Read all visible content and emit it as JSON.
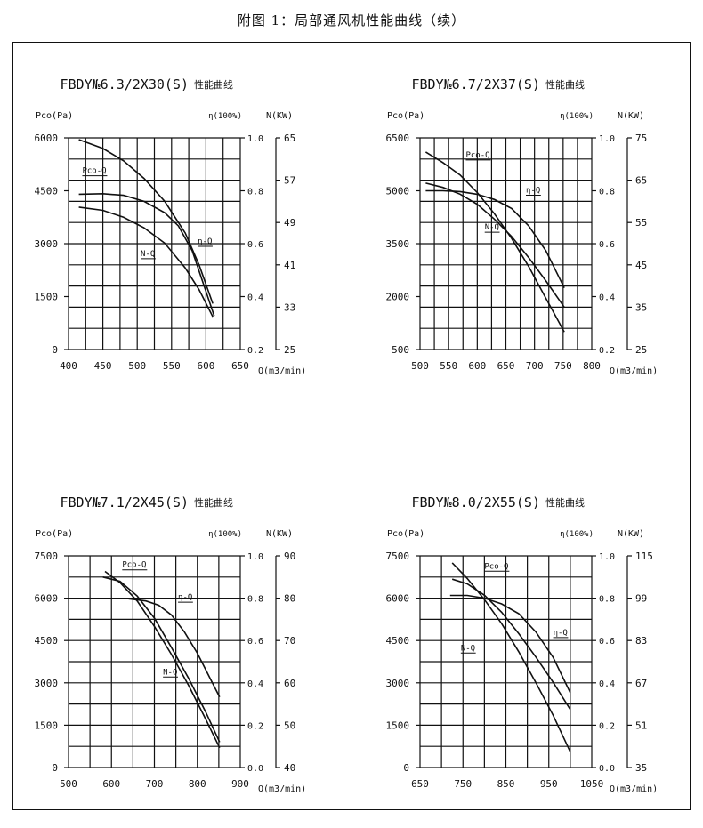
{
  "caption": "附图 1：局部通风机性能曲线（续）",
  "chart_data": [
    {
      "type": "line",
      "title": "FBDY№6.3/2X30(S)",
      "title_suffix": "性能曲线",
      "axis_labels": {
        "left": "Pco(Pa)",
        "eff": "η(100%)",
        "power": "N(KW)",
        "x": "Q(m3/min)"
      },
      "xlim": [
        400,
        650
      ],
      "x_ticks": [
        "400",
        "450",
        "500",
        "550",
        "600",
        "650"
      ],
      "y_pressure_ticks": [
        "0",
        "1500",
        "3000",
        "4500",
        "6000"
      ],
      "y_pressure_lim": [
        0,
        6000
      ],
      "y_eff_ticks": [
        "0.2",
        "0.4",
        "0.6",
        "0.8",
        "1.0"
      ],
      "y_eff_lim": [
        0.2,
        1.0
      ],
      "y_power_ticks": [
        "25",
        "33",
        "41",
        "49",
        "57",
        "65"
      ],
      "y_power_lim": [
        25,
        65
      ],
      "series": [
        {
          "name": "Pco-Q",
          "axis": "pressure",
          "x": [
            415,
            450,
            480,
            510,
            540,
            570,
            590,
            610
          ],
          "y": [
            5950,
            5700,
            5350,
            4850,
            4200,
            3300,
            2400,
            1300
          ]
        },
        {
          "name": "η-Q",
          "axis": "eff",
          "x": [
            415,
            450,
            480,
            510,
            540,
            560,
            580,
            600,
            612
          ],
          "y": [
            0.787,
            0.789,
            0.783,
            0.76,
            0.717,
            0.667,
            0.573,
            0.42,
            0.327
          ]
        },
        {
          "name": "N-Q",
          "axis": "power",
          "x": [
            415,
            450,
            480,
            510,
            540,
            570,
            590,
            610
          ],
          "y": [
            51.9,
            51.3,
            50.0,
            48.0,
            45.1,
            40.4,
            36.3,
            31.2
          ]
        }
      ],
      "curve_labels": [
        {
          "text": "Pco-Q",
          "x": 420,
          "y": 5000
        },
        {
          "text": "η-Q",
          "x": 588,
          "y": 3000
        },
        {
          "text": "N-Q",
          "x": 505,
          "y": 2650
        }
      ]
    },
    {
      "type": "line",
      "title": "FBDY№6.7/2X37(S)",
      "title_suffix": "性能曲线",
      "axis_labels": {
        "left": "Pco(Pa)",
        "eff": "η(100%)",
        "power": "N(KW)",
        "x": "Q(m3/min)"
      },
      "xlim": [
        500,
        800
      ],
      "x_ticks": [
        "500",
        "550",
        "600",
        "650",
        "700",
        "750",
        "800"
      ],
      "y_pressure_ticks": [
        "500",
        "2000",
        "3500",
        "5000",
        "6500"
      ],
      "y_pressure_lim": [
        500,
        6500
      ],
      "y_eff_ticks": [
        "0.2",
        "0.4",
        "0.6",
        "0.8",
        "1.0"
      ],
      "y_eff_lim": [
        0.2,
        1.0
      ],
      "y_power_ticks": [
        "25",
        "35",
        "45",
        "55",
        "65",
        "75"
      ],
      "y_power_lim": [
        25,
        75
      ],
      "series": [
        {
          "name": "Pco-Q",
          "axis": "pressure",
          "x": [
            510,
            540,
            570,
            600,
            630,
            660,
            690,
            720,
            752
          ],
          "y": [
            6100,
            5800,
            5450,
            4950,
            4350,
            3650,
            2850,
            1950,
            1000
          ]
        },
        {
          "name": "η-Q",
          "axis": "eff",
          "x": [
            510,
            540,
            570,
            600,
            630,
            660,
            690,
            720,
            752
          ],
          "y": [
            0.8,
            0.8,
            0.797,
            0.787,
            0.767,
            0.733,
            0.667,
            0.573,
            0.433
          ]
        },
        {
          "name": "N-Q",
          "axis": "power",
          "x": [
            510,
            540,
            570,
            600,
            630,
            660,
            690,
            720,
            752
          ],
          "y": [
            64.3,
            63.3,
            61.7,
            59.3,
            55.8,
            51.7,
            46.7,
            41.2,
            35.0
          ]
        }
      ],
      "curve_labels": [
        {
          "text": "Pco-Q",
          "x": 580,
          "y": 5950
        },
        {
          "text": "η-Q",
          "x": 685,
          "y": 4950
        },
        {
          "text": "N-Q",
          "x": 613,
          "y": 3900
        }
      ]
    },
    {
      "type": "line",
      "title": "FBDY№7.1/2X45(S)",
      "title_suffix": "性能曲线",
      "axis_labels": {
        "left": "Pco(Pa)",
        "eff": "η(100%)",
        "power": "N(KW)",
        "x": "Q(m3/min)"
      },
      "xlim": [
        500,
        900
      ],
      "x_ticks": [
        "500",
        "600",
        "700",
        "800",
        "900"
      ],
      "y_pressure_ticks": [
        "0",
        "1500",
        "3000",
        "4500",
        "6000",
        "7500"
      ],
      "y_pressure_lim": [
        0,
        7500
      ],
      "y_eff_ticks": [
        "0.0",
        "0.2",
        "0.4",
        "0.6",
        "0.8",
        "1.0"
      ],
      "y_eff_lim": [
        0,
        1.0
      ],
      "y_power_ticks": [
        "40",
        "50",
        "60",
        "70",
        "80",
        "90"
      ],
      "y_power_lim": [
        40,
        90
      ],
      "series": [
        {
          "name": "Pco-Q",
          "axis": "pressure",
          "x": [
            585,
            620,
            660,
            700,
            740,
            780,
            820,
            852
          ],
          "y": [
            6950,
            6550,
            5900,
            5000,
            4000,
            2900,
            1700,
            700
          ]
        },
        {
          "name": "η-Q",
          "axis": "eff",
          "x": [
            640,
            680,
            710,
            740,
            770,
            800,
            830,
            852
          ],
          "y": [
            0.797,
            0.787,
            0.767,
            0.72,
            0.64,
            0.54,
            0.42,
            0.333
          ]
        },
        {
          "name": "N-Q",
          "axis": "power",
          "x": [
            580,
            620,
            660,
            700,
            740,
            780,
            820,
            852
          ],
          "y": [
            85.0,
            84.0,
            80.5,
            75.3,
            68.3,
            61.0,
            53.0,
            46.0
          ]
        }
      ],
      "curve_labels": [
        {
          "text": "Pco-Q",
          "x": 625,
          "y": 7100
        },
        {
          "text": "η-Q",
          "x": 755,
          "y": 5950
        },
        {
          "text": "N-Q",
          "x": 720,
          "y": 3300
        }
      ]
    },
    {
      "type": "line",
      "title": "FBDY№8.0/2X55(S)",
      "title_suffix": "性能曲线",
      "axis_labels": {
        "left": "Pco(Pa)",
        "eff": "η(100%)",
        "power": "N(KW)",
        "x": "Q(m3/min)"
      },
      "xlim": [
        650,
        1050
      ],
      "x_ticks": [
        "650",
        "750",
        "850",
        "950",
        "1050"
      ],
      "y_pressure_ticks": [
        "0",
        "1500",
        "3000",
        "4500",
        "6000",
        "7500"
      ],
      "y_pressure_lim": [
        0,
        7500
      ],
      "y_eff_ticks": [
        "0.0",
        "0.2",
        "0.4",
        "0.6",
        "0.8",
        "1.0"
      ],
      "y_eff_lim": [
        0,
        1.0
      ],
      "y_power_ticks": [
        "35",
        "51",
        "67",
        "83",
        "99",
        "115"
      ],
      "y_power_lim": [
        35,
        115
      ],
      "series": [
        {
          "name": "Pco-Q",
          "axis": "pressure",
          "x": [
            725,
            760,
            800,
            840,
            880,
            920,
            960,
            1000
          ],
          "y": [
            7250,
            6700,
            5950,
            5100,
            4100,
            3000,
            1850,
            550
          ]
        },
        {
          "name": "η-Q",
          "axis": "eff",
          "x": [
            720,
            760,
            800,
            840,
            880,
            920,
            960,
            1000
          ],
          "y": [
            0.813,
            0.813,
            0.8,
            0.773,
            0.727,
            0.64,
            0.52,
            0.353
          ]
        },
        {
          "name": "N-Q",
          "axis": "power",
          "x": [
            725,
            760,
            800,
            840,
            880,
            920,
            960,
            1000
          ],
          "y": [
            106.2,
            104.4,
            100.1,
            93.7,
            85.6,
            76.7,
            67.2,
            56.9
          ]
        }
      ],
      "curve_labels": [
        {
          "text": "Pco-Q",
          "x": 800,
          "y": 7050
        },
        {
          "text": "η-Q",
          "x": 960,
          "y": 4700
        },
        {
          "text": "N-Q",
          "x": 745,
          "y": 4150
        }
      ]
    }
  ]
}
